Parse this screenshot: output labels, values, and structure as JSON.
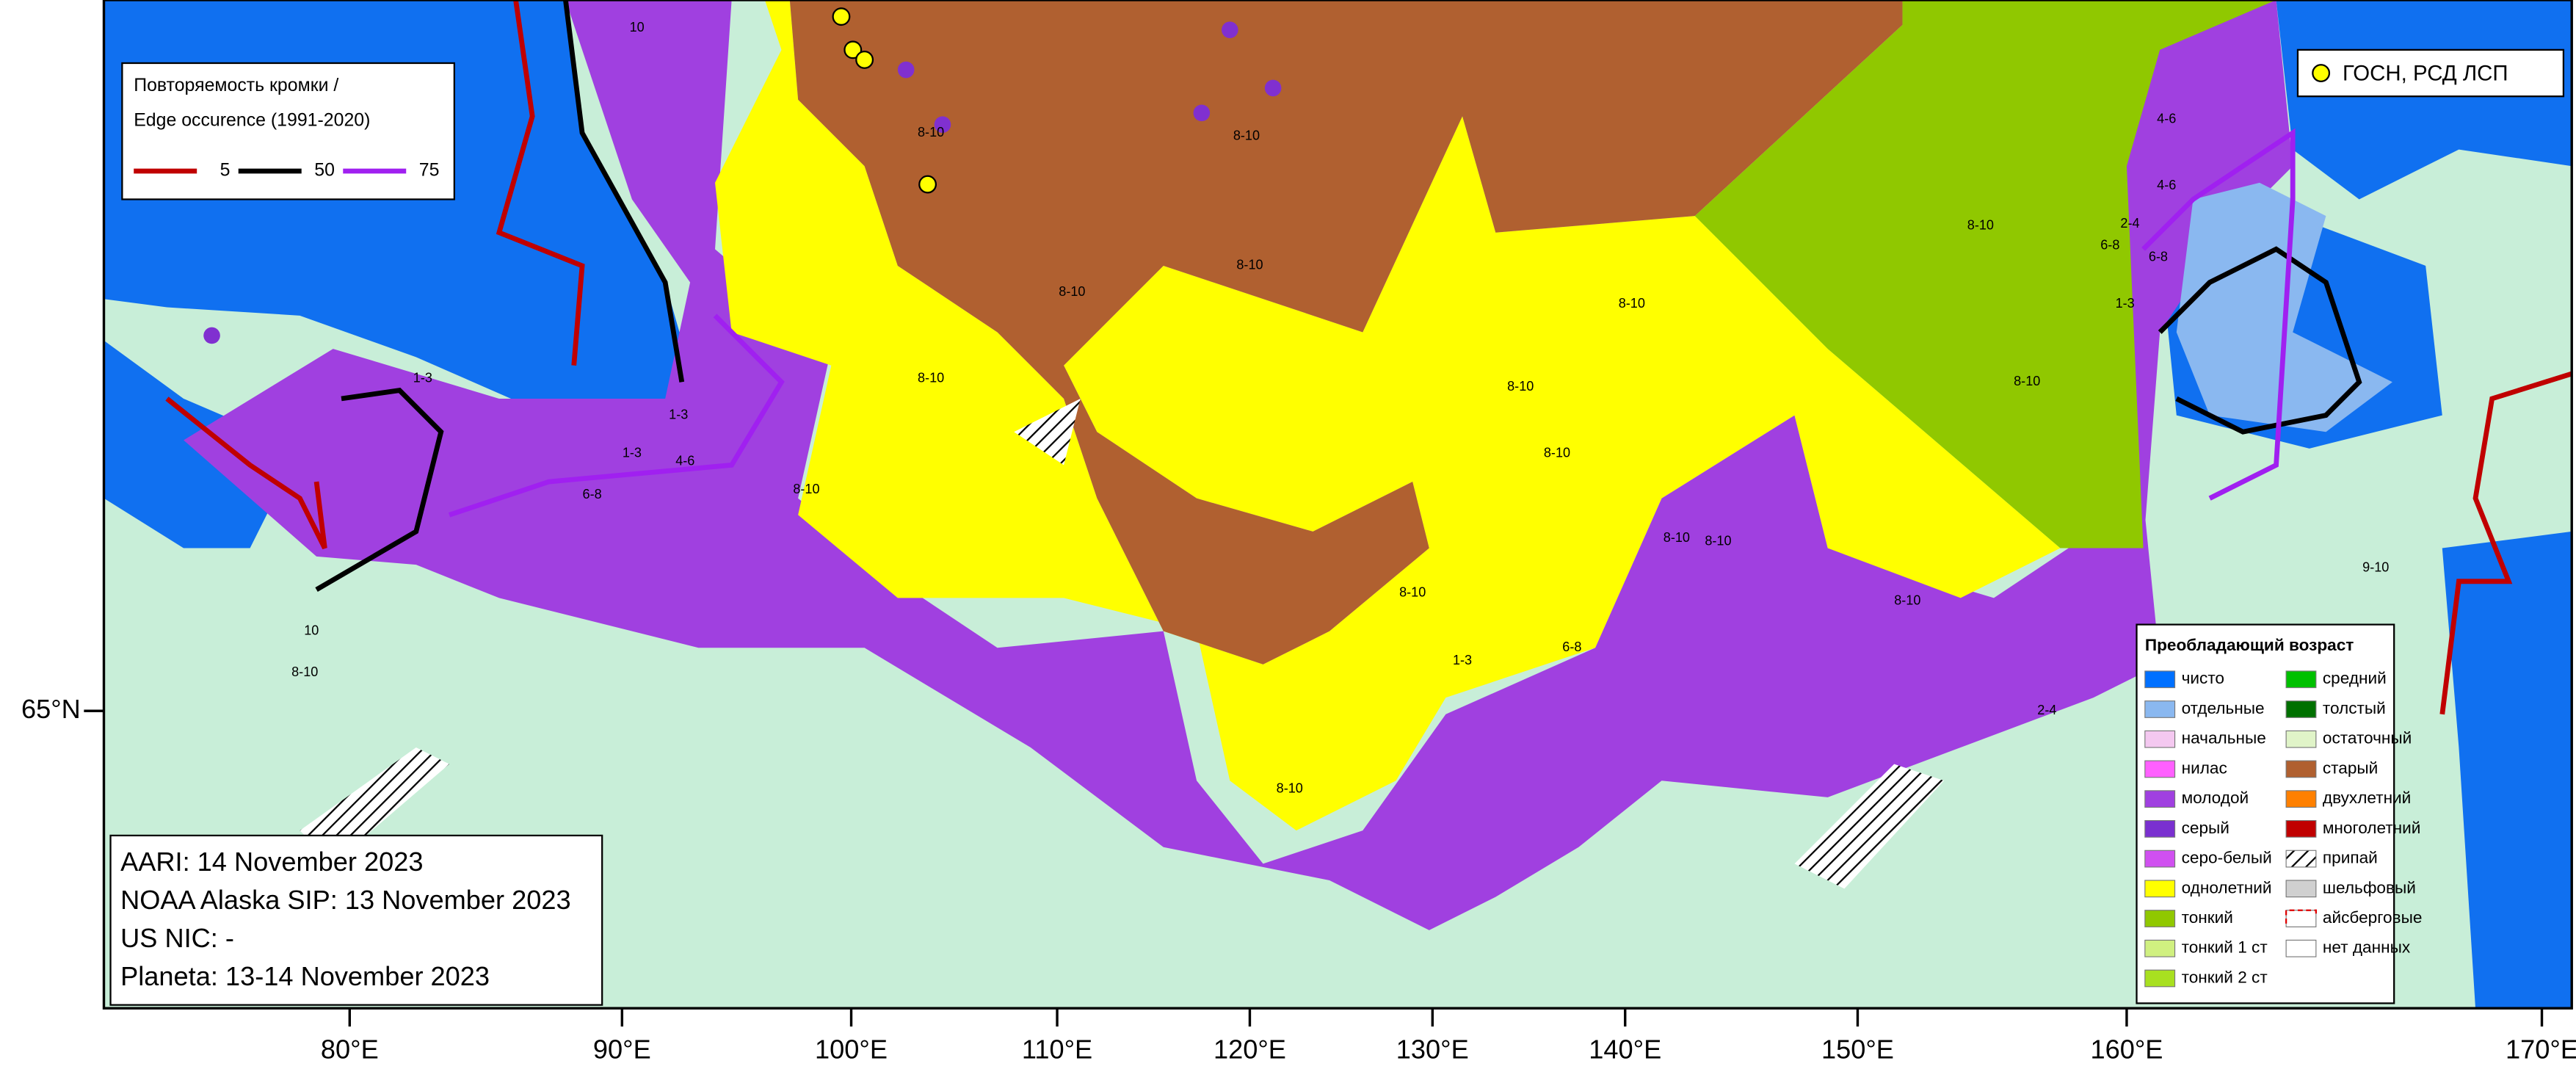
{
  "map": {
    "edge_legend": {
      "title": [
        "Повторяемость кромки /",
        "Edge occurence (1991-2020)"
      ],
      "items": [
        {
          "label": "5",
          "color": "#c00000"
        },
        {
          "label": "50",
          "color": "#000000"
        },
        {
          "label": "75",
          "color": "#a020f0"
        }
      ]
    },
    "point_legend": {
      "label": "ГОСН, РСД ЛСП",
      "color": "#ffff00"
    },
    "age_legend": {
      "title": "Преобладающий возраст",
      "items": [
        {
          "label": "чисто",
          "color": "#0070ff"
        },
        {
          "label": "отдельные",
          "color": "#8ab8f0"
        },
        {
          "label": "начальные",
          "color": "#f4c8f0"
        },
        {
          "label": "нилас",
          "color": "#ff60ff"
        },
        {
          "label": "молодой",
          "color": "#a040e0"
        },
        {
          "label": "серый",
          "color": "#7a30d0"
        },
        {
          "label": "серо-белый",
          "color": "#d050f0"
        },
        {
          "label": "однолетний",
          "color": "#ffff00"
        },
        {
          "label": "тонкий",
          "color": "#90c800"
        },
        {
          "label": "тонкий 1 ст",
          "color": "#d0f080"
        },
        {
          "label": "тонкий 2 ст",
          "color": "#a8e020"
        },
        {
          "label": "средний",
          "color": "#00c000"
        },
        {
          "label": "толстый",
          "color": "#007000"
        },
        {
          "label": "остаточный",
          "color": "#e0f4c8"
        },
        {
          "label": "старый",
          "color": "#b06030"
        },
        {
          "label": "двухлетний",
          "color": "#ff8000"
        },
        {
          "label": "многолетний",
          "color": "#c00000"
        },
        {
          "label": "припай",
          "color": "#ffffff",
          "style": "hatch"
        },
        {
          "label": "шельфовый",
          "color": "#d0d0d0"
        },
        {
          "label": "айсберговые",
          "color": "#ffffff",
          "style": "iceberg"
        },
        {
          "label": "нет данных",
          "color": "#ffffff"
        }
      ]
    },
    "info": [
      "AARI: 14 November 2023",
      "NOAA Alaska SIP: 13 November 2023",
      "US NIC: -",
      "Planeta: 13-14 November 2023"
    ],
    "longitudes": [
      "80°E",
      "90°E",
      "100°E",
      "110°E",
      "120°E",
      "130°E",
      "140°E",
      "150°E",
      "160°E",
      "170°E"
    ],
    "latitude": "65°N",
    "region_labels": [
      "8-10",
      "8-10",
      "8-10",
      "8-10",
      "8-10",
      "8-10",
      "8-10",
      "8-10",
      "8-10",
      "8-10",
      "8-10",
      "8-10",
      "8-10",
      "8-10",
      "1-3",
      "4-6",
      "6-8",
      "1-3",
      "4-6",
      "6-8",
      "10",
      "10",
      "8-10",
      "2-4",
      "2-4",
      "6-8",
      "1-3",
      "4-6",
      "9-10",
      "1-3",
      "8-10",
      "8-10",
      "6-8",
      "1-3"
    ]
  }
}
